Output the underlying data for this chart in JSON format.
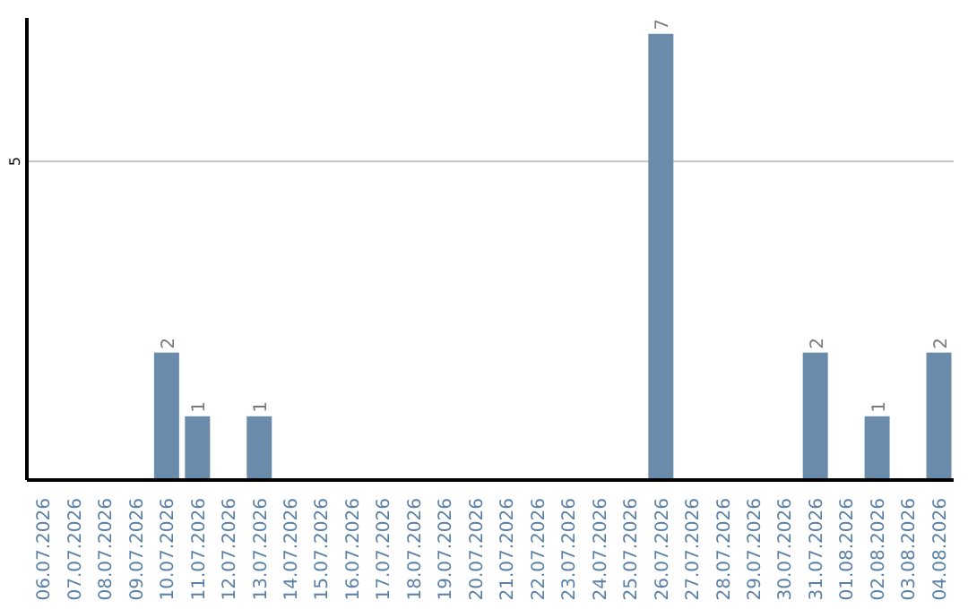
{
  "chart_data": {
    "type": "bar",
    "categories": [
      "06.07.2026",
      "07.07.2026",
      "08.07.2026",
      "09.07.2026",
      "10.07.2026",
      "11.07.2026",
      "12.07.2026",
      "13.07.2026",
      "14.07.2026",
      "15.07.2026",
      "16.07.2026",
      "17.07.2026",
      "18.07.2026",
      "19.07.2026",
      "20.07.2026",
      "21.07.2026",
      "22.07.2026",
      "23.07.2026",
      "24.07.2026",
      "25.07.2026",
      "26.07.2026",
      "27.07.2026",
      "28.07.2026",
      "29.07.2026",
      "30.07.2026",
      "31.07.2026",
      "01.08.2026",
      "02.08.2026",
      "03.08.2026",
      "04.08.2026"
    ],
    "values": [
      0,
      0,
      0,
      0,
      2,
      1,
      0,
      1,
      0,
      0,
      0,
      0,
      0,
      0,
      0,
      0,
      0,
      0,
      0,
      0,
      7,
      0,
      0,
      0,
      0,
      2,
      0,
      1,
      0,
      2
    ],
    "value_labels": [
      null,
      null,
      null,
      null,
      "2",
      "1",
      null,
      "1",
      null,
      null,
      null,
      null,
      null,
      null,
      null,
      null,
      null,
      null,
      null,
      null,
      "7",
      null,
      null,
      null,
      null,
      "2",
      null,
      "1",
      null,
      "2"
    ],
    "color": "#6a8caa",
    "ylim": [
      0,
      7.25
    ],
    "yticks": [
      5
    ],
    "grid": "y"
  }
}
